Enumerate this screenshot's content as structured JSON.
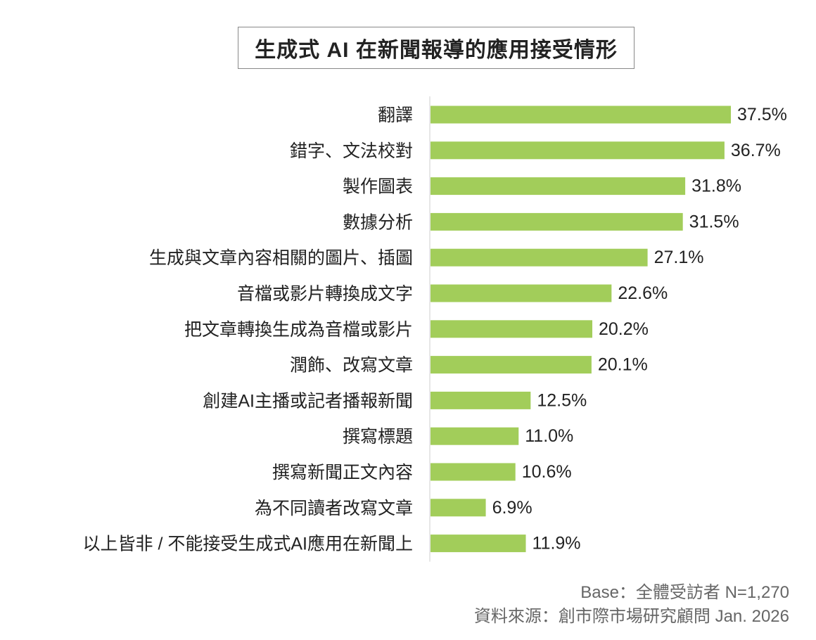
{
  "chart_data": {
    "type": "bar",
    "orientation": "horizontal",
    "title": "生成式 AI 在新聞報導的應用接受情形",
    "categories": [
      "翻譯",
      "錯字、文法校對",
      "製作圖表",
      "數據分析",
      "生成與文章內容相關的圖片、插圖",
      "音檔或影片轉換成文字",
      "把文章轉換生成為音檔或影片",
      "潤飾、改寫文章",
      "創建AI主播或記者播報新聞",
      "撰寫標題",
      "撰寫新聞正文內容",
      "為不同讀者改寫文章",
      "以上皆非 / 不能接受生成式AI應用在新聞上"
    ],
    "values": [
      37.5,
      36.7,
      31.8,
      31.5,
      27.1,
      22.6,
      20.2,
      20.1,
      12.5,
      11.0,
      10.6,
      6.9,
      11.9
    ],
    "value_labels": [
      "37.5%",
      "36.7%",
      "31.8%",
      "31.5%",
      "27.1%",
      "22.6%",
      "20.2%",
      "20.1%",
      "12.5%",
      "11.0%",
      "10.6%",
      "6.9%",
      "11.9%"
    ],
    "xlim": [
      0,
      40
    ],
    "bar_color": "#a2cd5a",
    "grid": false
  },
  "footer": {
    "base": "Base：全體受訪者 N=1,270",
    "source": "資料來源：創市際市場研究顧問 Jan. 2026"
  }
}
